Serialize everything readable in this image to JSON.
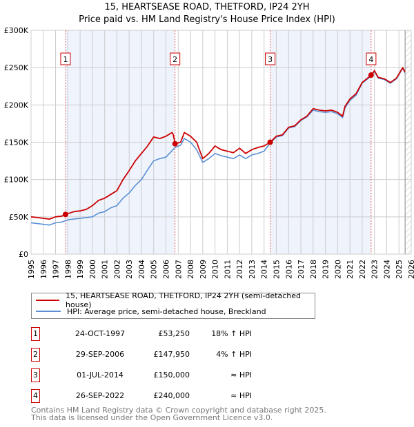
{
  "chart_data": {
    "type": "line",
    "title": "15, HEARTSEASE ROAD, THETFORD, IP24 2YH",
    "subtitle": "Price paid vs. HM Land Registry's House Price Index (HPI)",
    "xlim": [
      1995,
      2026
    ],
    "ylim": [
      0,
      300000
    ],
    "y_ticks": [
      {
        "v": 0,
        "label": "£0"
      },
      {
        "v": 50000,
        "label": "£50K"
      },
      {
        "v": 100000,
        "label": "£100K"
      },
      {
        "v": 150000,
        "label": "£150K"
      },
      {
        "v": 200000,
        "label": "£200K"
      },
      {
        "v": 250000,
        "label": "£250K"
      },
      {
        "v": 300000,
        "label": "£300K"
      }
    ],
    "x_ticks": [
      "1995",
      "1996",
      "1997",
      "1998",
      "1999",
      "2000",
      "2001",
      "2002",
      "2003",
      "2004",
      "2005",
      "2006",
      "2007",
      "2008",
      "2009",
      "2010",
      "2011",
      "2012",
      "2013",
      "2014",
      "2015",
      "2016",
      "2017",
      "2018",
      "2019",
      "2020",
      "2021",
      "2022",
      "2023",
      "2024",
      "2025",
      "2026"
    ],
    "grid": true,
    "series": [
      {
        "name": "15, HEARTSEASE ROAD, THETFORD, IP24 2YH (semi-detached house)",
        "color": "#cc0000",
        "x": [
          1995,
          1995.5,
          1996,
          1996.5,
          1997,
          1997.5,
          1997.8,
          1998.5,
          1999,
          1999.5,
          2000,
          2000.5,
          2001,
          2001.5,
          2002,
          2002.5,
          2003,
          2003.5,
          2004,
          2004.5,
          2005,
          2005.5,
          2006,
          2006.5,
          2006.6,
          2006.75,
          2007.2,
          2007.5,
          2008,
          2008.5,
          2009,
          2009.5,
          2010,
          2010.5,
          2011,
          2011.5,
          2012,
          2012.5,
          2013,
          2013.5,
          2014,
          2014.5,
          2015,
          2015.5,
          2016,
          2016.5,
          2017,
          2017.5,
          2018,
          2018.5,
          2019,
          2019.5,
          2020,
          2020.4,
          2020.6,
          2021,
          2021.5,
          2022,
          2022.75,
          2023,
          2023.3,
          2023.8,
          2024.3,
          2024.8,
          2025.3,
          2025.5
        ],
        "y": [
          50000,
          49000,
          48000,
          47000,
          50000,
          51000,
          53250,
          57000,
          58000,
          60000,
          65000,
          72000,
          75000,
          80000,
          85000,
          100000,
          112000,
          125000,
          135000,
          145000,
          157000,
          155000,
          158000,
          163000,
          160000,
          147950,
          150000,
          163000,
          158000,
          150000,
          128000,
          135000,
          145000,
          140000,
          138000,
          136000,
          142000,
          135000,
          140000,
          143000,
          145000,
          150000,
          158000,
          160000,
          170000,
          172000,
          180000,
          185000,
          195000,
          193000,
          192000,
          193000,
          190000,
          185000,
          198000,
          208000,
          215000,
          230000,
          240000,
          246000,
          237000,
          235000,
          230000,
          236000,
          250000,
          244000
        ]
      },
      {
        "name": "HPI: Average price, semi-detached house, Breckland",
        "color": "#5b8fd4",
        "x": [
          1995,
          1995.5,
          1996,
          1996.5,
          1997,
          1997.5,
          1998,
          1998.5,
          1999,
          1999.5,
          2000,
          2000.5,
          2001,
          2001.5,
          2002,
          2002.5,
          2003,
          2003.5,
          2004,
          2004.5,
          2005,
          2005.5,
          2006,
          2006.75,
          2007.2,
          2007.5,
          2008,
          2008.5,
          2009,
          2009.5,
          2010,
          2010.5,
          2011,
          2011.5,
          2012,
          2012.5,
          2013,
          2013.5,
          2014,
          2014.5,
          2015,
          2015.5,
          2016,
          2016.5,
          2017,
          2017.5,
          2018,
          2018.5,
          2019,
          2019.5,
          2020,
          2020.4,
          2020.6,
          2021,
          2021.5,
          2022,
          2022.75,
          2023,
          2023.3,
          2023.8,
          2024.3,
          2024.8,
          2025.3,
          2025.5
        ],
        "y": [
          42000,
          41000,
          40000,
          39000,
          42000,
          43000,
          46000,
          47000,
          48000,
          49000,
          50000,
          55000,
          57000,
          62000,
          65000,
          75000,
          82000,
          92000,
          100000,
          113000,
          125000,
          128000,
          130000,
          143000,
          146000,
          155000,
          150000,
          140000,
          123000,
          128000,
          135000,
          132000,
          130000,
          128000,
          133000,
          128000,
          133000,
          135000,
          138000,
          149000,
          157000,
          159000,
          169000,
          171000,
          179000,
          184000,
          193000,
          191000,
          190000,
          191000,
          188000,
          183000,
          196000,
          206000,
          213000,
          229000,
          239000,
          245000,
          236000,
          234000,
          229000,
          235000,
          249000,
          243000
        ]
      }
    ],
    "sales": [
      {
        "label": "1",
        "x": 1997.81,
        "price": 53250
      },
      {
        "label": "2",
        "x": 2006.74,
        "price": 147950
      },
      {
        "label": "3",
        "x": 2014.5,
        "price": 150000
      },
      {
        "label": "4",
        "x": 2022.73,
        "price": 240000
      }
    ],
    "future_hatch_from": 2025.5
  },
  "legend": {
    "property": "15, HEARTSEASE ROAD, THETFORD, IP24 2YH (semi-detached house)",
    "hpi": "HPI: Average price, semi-detached house, Breckland"
  },
  "transactions": [
    {
      "num": "1",
      "date": "24-OCT-1997",
      "price": "£53,250",
      "hpi": "18% ↑ HPI"
    },
    {
      "num": "2",
      "date": "29-SEP-2006",
      "price": "£147,950",
      "hpi": "4% ↑ HPI"
    },
    {
      "num": "3",
      "date": "01-JUL-2014",
      "price": "£150,000",
      "hpi": "≈ HPI"
    },
    {
      "num": "4",
      "date": "26-SEP-2022",
      "price": "£240,000",
      "hpi": "≈ HPI"
    }
  ],
  "footer": {
    "line1": "Contains HM Land Registry data © Crown copyright and database right 2025.",
    "line2": "This data is licensed under the Open Government Licence v3.0."
  }
}
